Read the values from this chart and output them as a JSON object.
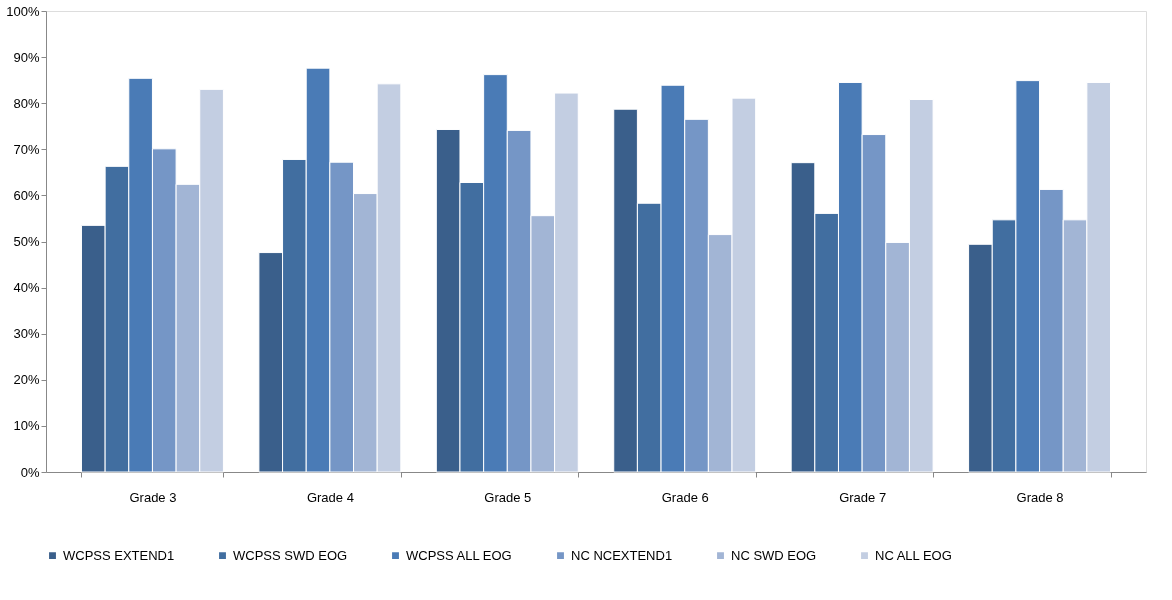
{
  "chart_data": {
    "type": "bar",
    "categories": [
      "Grade 3",
      "Grade 4",
      "Grade 5",
      "Grade 6",
      "Grade 7",
      "Grade 8"
    ],
    "series": [
      {
        "name": "WCPSS EXTEND1",
        "color": "#3a5f8b",
        "values": [
          53.5,
          47.6,
          74.3,
          78.7,
          67.1,
          49.4
        ]
      },
      {
        "name": "WCPSS SWD EOG",
        "color": "#416ea0",
        "values": [
          66.3,
          67.8,
          62.8,
          58.3,
          56.1,
          54.7
        ]
      },
      {
        "name": "WCPSS ALL EOG",
        "color": "#4a7bb6",
        "values": [
          85.4,
          87.6,
          86.2,
          83.9,
          84.5,
          84.9
        ]
      },
      {
        "name": "NC NCEXTEND1",
        "color": "#7596c6",
        "values": [
          70.1,
          67.2,
          74.1,
          76.5,
          73.2,
          61.3
        ]
      },
      {
        "name": "NC SWD EOG",
        "color": "#a2b5d5",
        "values": [
          62.4,
          60.4,
          55.6,
          51.5,
          49.8,
          54.7
        ]
      },
      {
        "name": "NC ALL EOG",
        "color": "#c3cee2",
        "values": [
          83.0,
          84.2,
          82.2,
          81.1,
          80.8,
          84.5
        ]
      }
    ],
    "ylim": [
      0,
      100
    ],
    "yticks": [
      {
        "value": 0,
        "label": "0%"
      },
      {
        "value": 10,
        "label": "10%"
      },
      {
        "value": 20,
        "label": "20%"
      },
      {
        "value": 30,
        "label": "30%"
      },
      {
        "value": 40,
        "label": "40%"
      },
      {
        "value": 50,
        "label": "50%"
      },
      {
        "value": 60,
        "label": "60%"
      },
      {
        "value": 70,
        "label": "70%"
      },
      {
        "value": 80,
        "label": "80%"
      },
      {
        "value": 90,
        "label": "90%"
      },
      {
        "value": 100,
        "label": "100%"
      }
    ],
    "grid": false,
    "legend": "bottom"
  }
}
